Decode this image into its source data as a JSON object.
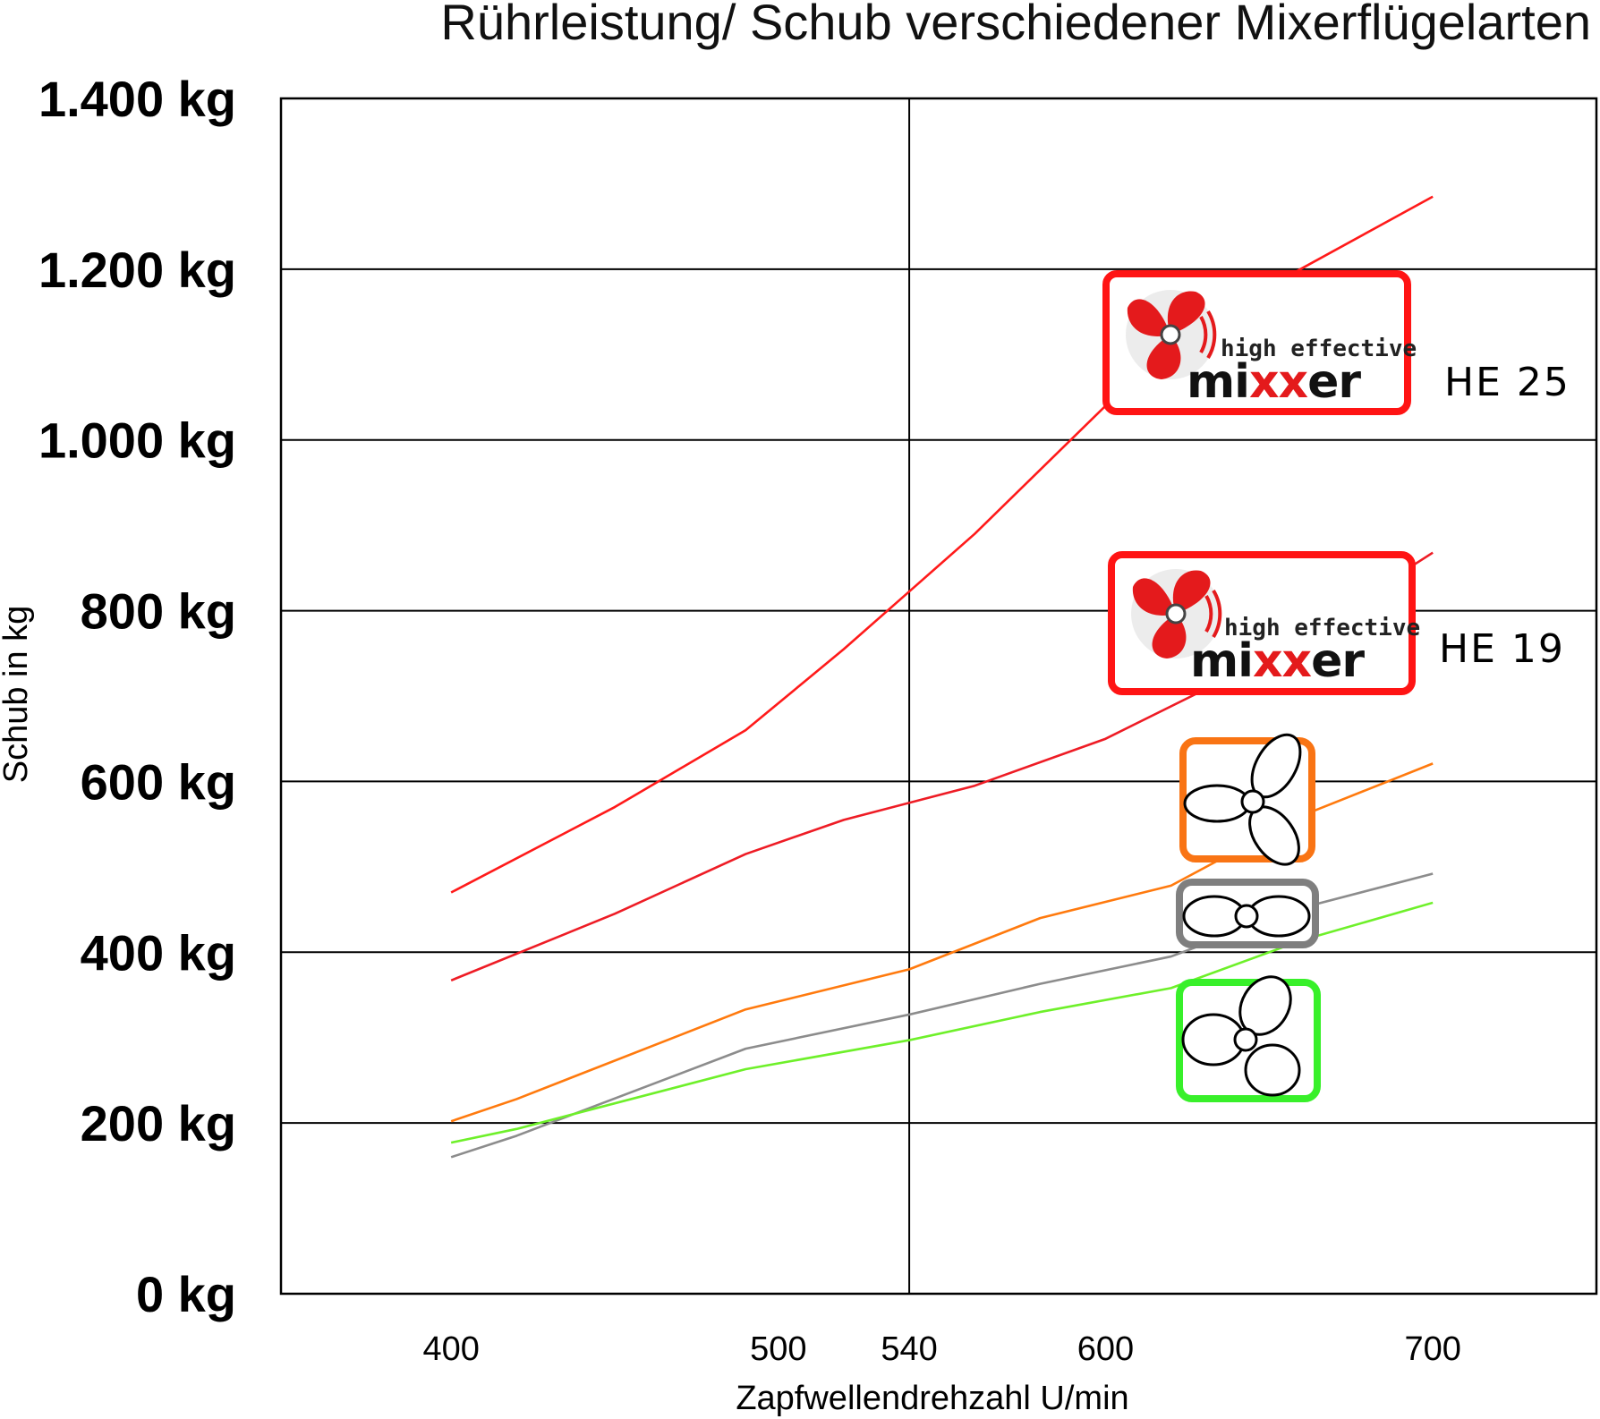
{
  "colors": {
    "he25": "#ff1a1a",
    "he19": "#ee1c25",
    "orange": "#ff7a0e",
    "gray": "#8c8c8c",
    "green": "#6ef02a",
    "logo_red": "#e41a1c",
    "green_box": "#38f02a",
    "gray_box": "#7f7f7f",
    "orange_box": "#f97414"
  },
  "icons": {
    "orange_box": "three-blade-propeller-icon",
    "gray_box": "two-blade-propeller-icon",
    "green_box": "three-blade-wide-propeller-icon"
  },
  "logos": {
    "top_text": "high effective",
    "main_text_pre": "mi",
    "main_text_xx": "xx",
    "main_text_post": "er",
    "he25_label": "HE 25",
    "he19_label": "HE 19"
  },
  "chart_data": {
    "type": "line",
    "title": "Rührleistung/ Schub verschiedener Mixerflügelarten",
    "xlabel": "Zapfwellendrehzahl U/min",
    "ylabel": "Schub in kg",
    "x_ticks": [
      400,
      500,
      540,
      600,
      700
    ],
    "y_ticks": [
      0,
      200,
      400,
      600,
      800,
      1000,
      1200,
      1400
    ],
    "y_tick_labels": [
      "0 kg",
      "200 kg",
      "400 kg",
      "600 kg",
      "800 kg",
      "1.000 kg",
      "1.200 kg",
      "1.400 kg"
    ],
    "xlim": [
      348,
      750
    ],
    "ylim": [
      0,
      1400
    ],
    "grid": {
      "horizontal": true,
      "vertical_at": [
        540
      ]
    },
    "series": [
      {
        "name": "HE 25",
        "x": [
          400,
          450,
          490,
          520,
          560,
          600,
          650,
          700
        ],
        "y": [
          470,
          570,
          660,
          755,
          890,
          1040,
          1180,
          1285
        ]
      },
      {
        "name": "HE 19",
        "x": [
          400,
          450,
          490,
          520,
          560,
          600,
          650,
          700
        ],
        "y": [
          367,
          445,
          515,
          555,
          595,
          650,
          745,
          868
        ]
      },
      {
        "x": [
          400,
          420,
          490,
          540,
          580,
          620,
          660,
          700
        ],
        "y": [
          202,
          228,
          333,
          380,
          440,
          478,
          560,
          621
        ]
      },
      {
        "x": [
          400,
          420,
          490,
          540,
          580,
          620,
          660,
          700
        ],
        "y": [
          160,
          185,
          287,
          327,
          363,
          395,
          452,
          492
        ]
      },
      {
        "x": [
          400,
          420,
          490,
          540,
          580,
          620,
          660,
          700
        ],
        "y": [
          177,
          193,
          263,
          297,
          330,
          358,
          414,
          458
        ]
      }
    ]
  }
}
